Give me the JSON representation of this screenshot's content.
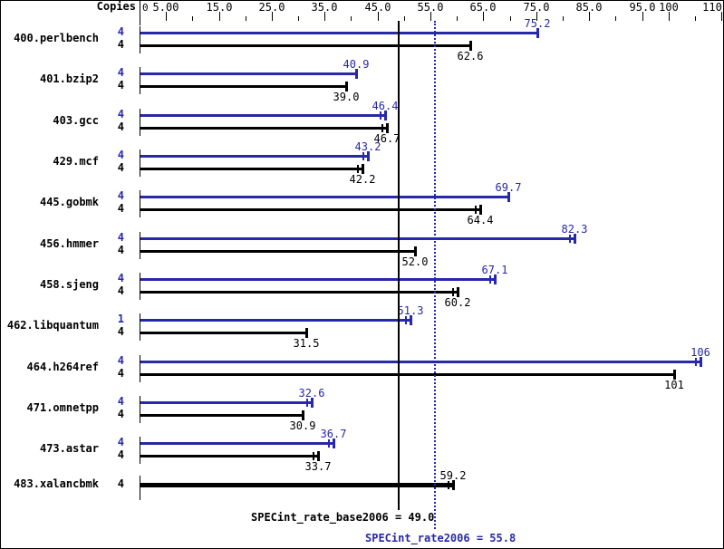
{
  "header": {
    "copies_label": "Copies"
  },
  "axis": {
    "min": 0,
    "max": 110.5,
    "origin_label": "0",
    "major_ticks": [
      {
        "value": 5,
        "label": "5.00"
      },
      {
        "value": 15,
        "label": "15.0"
      },
      {
        "value": 25,
        "label": "25.0"
      },
      {
        "value": 35,
        "label": "35.0"
      },
      {
        "value": 45,
        "label": "45.0"
      },
      {
        "value": 55,
        "label": "55.0"
      },
      {
        "value": 65,
        "label": "65.0"
      },
      {
        "value": 75,
        "label": "75.0"
      },
      {
        "value": 85,
        "label": "85.0"
      },
      {
        "value": 95,
        "label": "95.0"
      },
      {
        "value": 100,
        "label": "100"
      },
      {
        "value": 110,
        "label": "110"
      }
    ],
    "minor_ticks": [
      10,
      20,
      30,
      40,
      50,
      60,
      70,
      80,
      90,
      105
    ]
  },
  "chart_data": {
    "type": "bar",
    "orientation": "horizontal",
    "xlabel": "",
    "ylabel": "Copies",
    "xlim": [
      0,
      110.5
    ],
    "grid": false,
    "colors": {
      "peak": "#2828aa",
      "base": "#000000"
    },
    "benchmarks": [
      {
        "name": "400.perlbench",
        "bars": [
          {
            "series": "peak",
            "copies": "4",
            "value": 75.2,
            "label": "75.2",
            "double_tick": false
          },
          {
            "series": "base",
            "copies": "4",
            "value": 62.6,
            "label": "62.6",
            "double_tick": false
          }
        ]
      },
      {
        "name": "401.bzip2",
        "bars": [
          {
            "series": "peak",
            "copies": "4",
            "value": 40.9,
            "label": "40.9",
            "double_tick": false
          },
          {
            "series": "base",
            "copies": "4",
            "value": 39.0,
            "label": "39.0",
            "double_tick": false
          }
        ]
      },
      {
        "name": "403.gcc",
        "bars": [
          {
            "series": "peak",
            "copies": "4",
            "value": 46.4,
            "label": "46.4",
            "double_tick": true
          },
          {
            "series": "base",
            "copies": "4",
            "value": 46.7,
            "label": "46.7",
            "double_tick": true
          }
        ]
      },
      {
        "name": "429.mcf",
        "bars": [
          {
            "series": "peak",
            "copies": "4",
            "value": 43.2,
            "label": "43.2",
            "double_tick": true
          },
          {
            "series": "base",
            "copies": "4",
            "value": 42.2,
            "label": "42.2",
            "double_tick": true
          }
        ]
      },
      {
        "name": "445.gobmk",
        "bars": [
          {
            "series": "peak",
            "copies": "4",
            "value": 69.7,
            "label": "69.7",
            "double_tick": false
          },
          {
            "series": "base",
            "copies": "4",
            "value": 64.4,
            "label": "64.4",
            "double_tick": true
          }
        ]
      },
      {
        "name": "456.hmmer",
        "bars": [
          {
            "series": "peak",
            "copies": "4",
            "value": 82.3,
            "label": "82.3",
            "double_tick": true
          },
          {
            "series": "base",
            "copies": "4",
            "value": 52.0,
            "label": "52.0",
            "double_tick": false
          }
        ]
      },
      {
        "name": "458.sjeng",
        "bars": [
          {
            "series": "peak",
            "copies": "4",
            "value": 67.1,
            "label": "67.1",
            "double_tick": true
          },
          {
            "series": "base",
            "copies": "4",
            "value": 60.2,
            "label": "60.2",
            "double_tick": true
          }
        ]
      },
      {
        "name": "462.libquantum",
        "bars": [
          {
            "series": "peak",
            "copies": "1",
            "value": 51.3,
            "label": "51.3",
            "double_tick": true
          },
          {
            "series": "base",
            "copies": "4",
            "value": 31.5,
            "label": "31.5",
            "double_tick": false
          }
        ]
      },
      {
        "name": "464.h264ref",
        "bars": [
          {
            "series": "peak",
            "copies": "4",
            "value": 106,
            "label": "106",
            "double_tick": true
          },
          {
            "series": "base",
            "copies": "4",
            "value": 101,
            "label": "101",
            "double_tick": false
          }
        ]
      },
      {
        "name": "471.omnetpp",
        "bars": [
          {
            "series": "peak",
            "copies": "4",
            "value": 32.6,
            "label": "32.6",
            "double_tick": true
          },
          {
            "series": "base",
            "copies": "4",
            "value": 30.9,
            "label": "30.9",
            "double_tick": false
          }
        ]
      },
      {
        "name": "473.astar",
        "bars": [
          {
            "series": "peak",
            "copies": "4",
            "value": 36.7,
            "label": "36.7",
            "double_tick": true
          },
          {
            "series": "base",
            "copies": "4",
            "value": 33.7,
            "label": "33.7",
            "double_tick": true
          }
        ]
      },
      {
        "name": "483.xalancbmk",
        "bars": [
          {
            "series": "merged",
            "copies": "4",
            "value": 59.2,
            "label": "59.2",
            "double_tick": true
          }
        ]
      }
    ],
    "reference_lines": [
      {
        "name": "base_mean",
        "label": "SPECint_rate_base2006 = 49.0",
        "value": 49.0,
        "style": "solid",
        "color": "#000000"
      },
      {
        "name": "peak_mean",
        "label": "SPECint_rate2006 = 55.8",
        "value": 55.8,
        "style": "dotted",
        "color": "#2828aa"
      }
    ]
  }
}
